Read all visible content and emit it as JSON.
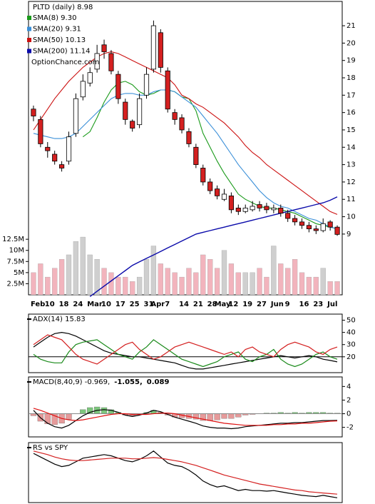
{
  "chart_data": [
    {
      "type": "candlestick",
      "title": "PLTD (daily) 8.98",
      "watermark": "OptionChance.com",
      "categories": [
        "Feb",
        null,
        "10",
        null,
        "18",
        null,
        "24",
        null,
        "Mar",
        null,
        "10",
        null,
        "17",
        null,
        "25",
        null,
        "31",
        "Apr",
        null,
        "7",
        null,
        "14",
        null,
        "21",
        null,
        "28",
        "May",
        null,
        "12",
        null,
        "19",
        null,
        "27",
        null,
        "Jun",
        null,
        "9",
        null,
        "16",
        null,
        "23",
        null,
        "Jul",
        null
      ],
      "open": [
        16.2,
        15.6,
        14.0,
        13.6,
        13.0,
        13.2,
        14.8,
        16.9,
        17.7,
        18.5,
        19.9,
        19.4,
        18.2,
        16.6,
        15.5,
        15.3,
        17.0,
        18.5,
        20.6,
        18.4,
        16.0,
        15.7,
        14.9,
        14.0,
        12.8,
        12.0,
        11.6,
        11.0,
        11.2,
        10.5,
        10.3,
        10.4,
        10.7,
        10.6,
        10.4,
        10.5,
        10.2,
        9.9,
        9.7,
        9.5,
        9.3,
        9.2,
        9.7,
        9.4
      ],
      "high": [
        16.4,
        15.8,
        14.3,
        13.8,
        13.2,
        14.9,
        17.1,
        18.2,
        18.6,
        19.9,
        20.2,
        19.6,
        18.4,
        16.8,
        15.6,
        17.1,
        18.6,
        21.3,
        20.8,
        18.6,
        16.2,
        15.9,
        15.1,
        14.2,
        13.0,
        12.2,
        11.8,
        11.6,
        11.4,
        10.7,
        10.7,
        10.9,
        10.9,
        10.8,
        10.7,
        10.7,
        10.4,
        10.1,
        9.9,
        9.7,
        9.5,
        9.9,
        9.8,
        9.5
      ],
      "low": [
        15.5,
        14.0,
        13.4,
        13.0,
        12.6,
        13.0,
        14.6,
        16.7,
        17.5,
        18.3,
        19.1,
        18.2,
        16.5,
        15.3,
        14.9,
        15.1,
        16.8,
        18.3,
        18.3,
        16.0,
        15.3,
        14.8,
        14.0,
        12.8,
        11.8,
        11.3,
        11.0,
        10.9,
        10.2,
        10.1,
        10.2,
        10.3,
        10.3,
        10.2,
        10.2,
        10.0,
        9.7,
        9.5,
        9.3,
        9.1,
        9.0,
        9.1,
        9.2,
        8.9
      ],
      "close": [
        15.8,
        14.2,
        13.8,
        13.2,
        12.8,
        14.6,
        16.8,
        17.8,
        18.3,
        19.4,
        19.5,
        18.4,
        16.8,
        15.6,
        15.1,
        16.8,
        18.2,
        21.0,
        18.6,
        16.2,
        15.6,
        15.0,
        14.2,
        13.0,
        12.0,
        11.5,
        11.2,
        11.3,
        10.4,
        10.3,
        10.5,
        10.6,
        10.5,
        10.4,
        10.5,
        10.2,
        9.9,
        9.7,
        9.5,
        9.3,
        9.2,
        9.6,
        9.4,
        8.98
      ],
      "up_color": "#ffffff",
      "down_color": "#d42020",
      "series": [
        {
          "name": "SMA(8) 9.30",
          "color": "#1a9a1a",
          "values": [
            null,
            null,
            null,
            null,
            null,
            null,
            null,
            14.6,
            14.9,
            15.7,
            16.6,
            17.3,
            17.7,
            17.8,
            17.6,
            17.2,
            17.0,
            17.1,
            17.3,
            17.3,
            17.2,
            16.9,
            16.8,
            16.1,
            14.8,
            14.0,
            13.2,
            12.5,
            11.9,
            11.3,
            11.0,
            10.8,
            10.6,
            10.5,
            10.5,
            10.4,
            10.3,
            10.2,
            10.0,
            9.8,
            9.6,
            9.5,
            9.4,
            9.3
          ]
        },
        {
          "name": "SMA(20) 9.31",
          "color": "#3a8fd8",
          "values": [
            14.8,
            14.7,
            14.6,
            14.5,
            14.5,
            14.6,
            14.8,
            15.2,
            15.6,
            16.0,
            16.4,
            16.8,
            17.0,
            17.1,
            17.1,
            17.0,
            17.0,
            17.2,
            17.3,
            17.3,
            17.2,
            16.9,
            16.6,
            16.3,
            15.8,
            15.3,
            14.8,
            14.2,
            13.6,
            13.0,
            12.5,
            12.0,
            11.5,
            11.1,
            10.8,
            10.6,
            10.5,
            10.3,
            10.1,
            9.9,
            9.8,
            9.6,
            9.4,
            9.31
          ]
        },
        {
          "name": "SMA(50) 10.13",
          "color": "#cc1111",
          "values": [
            15.0,
            15.6,
            16.2,
            16.8,
            17.3,
            17.8,
            18.2,
            18.6,
            18.9,
            19.2,
            19.4,
            19.5,
            19.4,
            19.2,
            19.0,
            18.8,
            18.6,
            18.4,
            18.2,
            18.0,
            17.6,
            17.0,
            16.8,
            16.5,
            16.3,
            16.0,
            15.7,
            15.4,
            15.0,
            14.6,
            14.1,
            13.7,
            13.4,
            13.0,
            12.7,
            12.4,
            12.1,
            11.8,
            11.5,
            11.2,
            10.9,
            10.6,
            10.3,
            10.13
          ]
        },
        {
          "name": "SMA(200) 11.14",
          "color": "#0a0aaa",
          "values": [
            null,
            null,
            null,
            null,
            null,
            null,
            null,
            null,
            5.4,
            5.7,
            6.0,
            6.3,
            6.6,
            6.9,
            7.2,
            7.4,
            7.6,
            7.8,
            8.0,
            8.2,
            8.4,
            8.6,
            8.8,
            9.0,
            9.1,
            9.2,
            9.3,
            9.4,
            9.5,
            9.6,
            9.7,
            9.8,
            9.9,
            10.0,
            10.1,
            10.2,
            10.3,
            10.4,
            10.5,
            10.6,
            10.7,
            10.8,
            10.95,
            11.14
          ]
        }
      ],
      "volume": {
        "axis": "y2",
        "up_color": "#cfcfcf",
        "down_color": "#f2b4bd",
        "values": [
          5000000,
          7000000,
          4000000,
          6000000,
          8000000,
          9000000,
          12000000,
          13000000,
          9000000,
          8000000,
          6000000,
          5000000,
          4000000,
          4000000,
          3000000,
          4000000,
          8000000,
          11000000,
          7000000,
          6000000,
          5000000,
          4000000,
          6000000,
          5000000,
          9000000,
          8000000,
          6000000,
          10000000,
          7000000,
          5000000,
          5000000,
          5000000,
          6000000,
          4000000,
          11000000,
          7000000,
          6000000,
          8000000,
          5000000,
          4000000,
          4000000,
          6000000,
          3000000,
          3000000
        ]
      },
      "ylim": [
        5.5,
        22.4
      ],
      "yticks": [
        9,
        10,
        11,
        12,
        13,
        14,
        15,
        16,
        17,
        18,
        19,
        20,
        21
      ],
      "y2lim": [
        0,
        66000000
      ],
      "y2ticks": [
        {
          "value": 2500000,
          "label": "2.5M"
        },
        {
          "value": 5000000,
          "label": "5M"
        },
        {
          "value": 7500000,
          "label": "7.5M"
        },
        {
          "value": 10000000,
          "label": "10M"
        },
        {
          "value": 12500000,
          "label": "12.5M"
        }
      ]
    },
    {
      "type": "line",
      "hline": 20,
      "series": [
        {
          "name": "ADX(14) 15.83",
          "color": "#000000",
          "values": [
            28,
            32,
            36,
            39,
            40,
            39,
            37,
            34,
            31,
            28,
            25,
            23,
            22,
            21,
            20,
            20,
            19,
            18,
            17,
            16,
            15,
            13,
            11,
            10,
            10,
            11,
            12,
            13,
            14,
            15,
            16,
            17,
            18,
            19,
            20,
            21,
            20,
            19,
            20,
            21,
            20,
            18,
            17,
            15.83
          ]
        },
        {
          "color": "#1a8a1a",
          "values": [
            22,
            18,
            16,
            15,
            15,
            24,
            30,
            32,
            33,
            34,
            30,
            26,
            22,
            20,
            18,
            24,
            28,
            34,
            30,
            26,
            22,
            18,
            16,
            14,
            12,
            14,
            16,
            20,
            22,
            24,
            18,
            16,
            20,
            22,
            26,
            18,
            14,
            12,
            14,
            18,
            22,
            24,
            20,
            18
          ]
        },
        {
          "color": "#d42020",
          "values": [
            30,
            34,
            38,
            36,
            34,
            28,
            22,
            18,
            16,
            14,
            18,
            22,
            26,
            30,
            32,
            26,
            22,
            18,
            20,
            24,
            28,
            30,
            32,
            30,
            28,
            26,
            24,
            22,
            24,
            20,
            26,
            28,
            24,
            22,
            20,
            26,
            30,
            32,
            30,
            28,
            24,
            22,
            26,
            28
          ]
        }
      ],
      "ylim": [
        7,
        55
      ],
      "yticks": [
        20,
        30,
        40,
        50
      ]
    },
    {
      "type": "macd",
      "hline": 0,
      "series": [
        {
          "name": "MACD(8,40,9) -0.969,",
          "color": "#000000",
          "values": [
            0.5,
            -0.6,
            -1.4,
            -1.9,
            -2.1,
            -1.7,
            -1.0,
            -0.3,
            0.2,
            0.5,
            0.6,
            0.5,
            0.2,
            -0.2,
            -0.4,
            -0.2,
            0.1,
            0.5,
            0.3,
            -0.1,
            -0.5,
            -0.8,
            -1.1,
            -1.4,
            -1.8,
            -2.0,
            -2.1,
            -2.1,
            -2.2,
            -2.1,
            -1.9,
            -1.8,
            -1.7,
            -1.6,
            -1.5,
            -1.4,
            -1.4,
            -1.3,
            -1.3,
            -1.2,
            -1.1,
            -1.0,
            -1.0,
            -0.969
          ]
        },
        {
          "name": "-1.055,",
          "color": "#dd1111",
          "values": [
            0.8,
            0.5,
            0.1,
            -0.3,
            -0.7,
            -0.9,
            -1.0,
            -0.9,
            -0.7,
            -0.5,
            -0.3,
            -0.1,
            0.0,
            0.0,
            -0.1,
            -0.1,
            -0.1,
            0.0,
            0.1,
            0.1,
            0.0,
            -0.2,
            -0.4,
            -0.6,
            -0.8,
            -1.0,
            -1.2,
            -1.4,
            -1.5,
            -1.6,
            -1.7,
            -1.7,
            -1.7,
            -1.7,
            -1.6,
            -1.6,
            -1.5,
            -1.5,
            -1.4,
            -1.4,
            -1.3,
            -1.2,
            -1.1,
            -1.055
          ]
        },
        {
          "name": "0.089",
          "color": "#2255bb",
          "up_color": "#7cc67c",
          "down_color": "#e69a9a",
          "values": [
            -0.3,
            -1.1,
            -1.5,
            -1.6,
            -1.4,
            -0.8,
            0.0,
            0.6,
            0.9,
            1.0,
            0.9,
            0.6,
            0.2,
            -0.2,
            -0.3,
            -0.1,
            0.2,
            0.5,
            0.2,
            -0.2,
            -0.5,
            -0.6,
            -0.7,
            -0.8,
            -1.0,
            -1.0,
            -0.9,
            -0.7,
            -0.7,
            -0.5,
            -0.2,
            -0.1,
            0.0,
            0.1,
            0.1,
            0.2,
            0.1,
            0.2,
            0.1,
            0.2,
            0.2,
            0.2,
            0.1,
            0.089
          ]
        }
      ],
      "ylim": [
        -3.4,
        5.4
      ],
      "yticks": [
        4,
        2,
        0,
        -2
      ]
    },
    {
      "type": "line",
      "title": "RS vs SPY",
      "series": [
        {
          "color": "#000000",
          "values": [
            8.2,
            7.6,
            7.0,
            6.4,
            6.0,
            6.2,
            6.8,
            7.4,
            7.6,
            7.8,
            8.0,
            7.8,
            7.4,
            7.0,
            6.8,
            7.2,
            7.8,
            8.6,
            7.6,
            6.6,
            6.2,
            6.0,
            5.4,
            4.6,
            3.6,
            3.0,
            2.6,
            2.8,
            2.4,
            2.0,
            2.2,
            2.0,
            2.0,
            1.9,
            2.0,
            1.8,
            1.6,
            1.4,
            1.2,
            1.1,
            1.0,
            1.2,
            1.0,
            0.8
          ]
        },
        {
          "color": "#d42020",
          "values": [
            8.6,
            8.3,
            8.0,
            7.6,
            7.3,
            7.1,
            7.0,
            7.0,
            7.1,
            7.2,
            7.3,
            7.4,
            7.4,
            7.4,
            7.3,
            7.3,
            7.4,
            7.5,
            7.4,
            7.2,
            7.0,
            6.8,
            6.5,
            6.2,
            5.8,
            5.4,
            5.0,
            4.6,
            4.3,
            4.0,
            3.7,
            3.4,
            3.1,
            2.9,
            2.7,
            2.5,
            2.3,
            2.1,
            2.0,
            1.8,
            1.7,
            1.6,
            1.5,
            1.4
          ]
        }
      ],
      "ylim": [
        0,
        10
      ]
    }
  ]
}
